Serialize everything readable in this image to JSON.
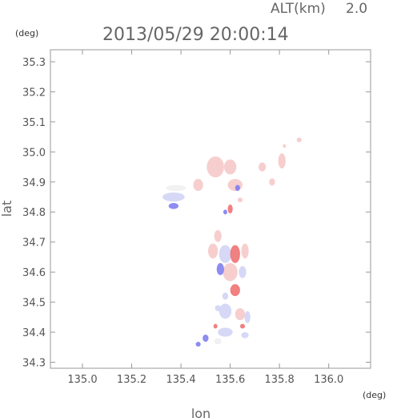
{
  "header": {
    "param_label": "ALT(km)",
    "param_value": "2.0",
    "timestamp": "2013/05/29 20:00:14"
  },
  "chart_data": {
    "type": "scatter",
    "title": "2013/05/29 20:00:14",
    "xlabel": "lon",
    "ylabel": "lat",
    "x_unit": "(deg)",
    "y_unit": "(deg)",
    "xlim": [
      134.87,
      136.17
    ],
    "ylim": [
      34.28,
      35.34
    ],
    "x_ticks": [
      135.0,
      135.2,
      135.4,
      135.6,
      135.8,
      136.0
    ],
    "x_tick_labels": [
      "135.0",
      "135.2",
      "135.4",
      "135.6",
      "135.8",
      "136.0"
    ],
    "y_ticks": [
      34.3,
      34.4,
      34.5,
      34.6,
      34.7,
      34.8,
      34.9,
      35.0,
      35.1,
      35.2,
      35.3
    ],
    "y_tick_labels": [
      "34.3",
      "34.4",
      "34.5",
      "34.6",
      "34.7",
      "34.8",
      "34.9",
      "35.0",
      "35.1",
      "35.2",
      "35.3"
    ],
    "grid": false,
    "colors": {
      "positive_light": "#f6c6c6",
      "positive_strong": "#ee6a6a",
      "negative_light": "#cfd1f4",
      "negative_strong": "#7878ee",
      "neutral": "#eeeeee",
      "axis": "#999999"
    },
    "patches": [
      {
        "lon": 135.54,
        "lat": 34.95,
        "rx": 0.035,
        "ry": 0.035,
        "polarity": "pos",
        "intensity": 0.35
      },
      {
        "lon": 135.6,
        "lat": 34.95,
        "rx": 0.025,
        "ry": 0.025,
        "polarity": "pos",
        "intensity": 0.35
      },
      {
        "lon": 135.47,
        "lat": 34.89,
        "rx": 0.02,
        "ry": 0.02,
        "polarity": "pos",
        "intensity": 0.4
      },
      {
        "lon": 135.62,
        "lat": 34.89,
        "rx": 0.03,
        "ry": 0.02,
        "polarity": "pos",
        "intensity": 0.3
      },
      {
        "lon": 135.73,
        "lat": 34.95,
        "rx": 0.015,
        "ry": 0.015,
        "polarity": "pos",
        "intensity": 0.3
      },
      {
        "lon": 135.77,
        "lat": 34.9,
        "rx": 0.012,
        "ry": 0.012,
        "polarity": "pos",
        "intensity": 0.3
      },
      {
        "lon": 135.81,
        "lat": 34.97,
        "rx": 0.015,
        "ry": 0.025,
        "polarity": "pos",
        "intensity": 0.3
      },
      {
        "lon": 135.88,
        "lat": 35.04,
        "rx": 0.01,
        "ry": 0.008,
        "polarity": "pos",
        "intensity": 0.3
      },
      {
        "lon": 135.82,
        "lat": 35.02,
        "rx": 0.006,
        "ry": 0.006,
        "polarity": "pos",
        "intensity": 0.3
      },
      {
        "lon": 135.37,
        "lat": 34.85,
        "rx": 0.045,
        "ry": 0.015,
        "polarity": "neg",
        "intensity": 0.45
      },
      {
        "lon": 135.38,
        "lat": 34.88,
        "rx": 0.04,
        "ry": 0.01,
        "polarity": "neu",
        "intensity": 0.2
      },
      {
        "lon": 135.37,
        "lat": 34.82,
        "rx": 0.02,
        "ry": 0.01,
        "polarity": "neg",
        "intensity": 0.5
      },
      {
        "lon": 135.63,
        "lat": 34.88,
        "rx": 0.01,
        "ry": 0.01,
        "polarity": "neg",
        "intensity": 0.5
      },
      {
        "lon": 135.6,
        "lat": 34.81,
        "rx": 0.01,
        "ry": 0.015,
        "polarity": "pos",
        "intensity": 0.7
      },
      {
        "lon": 135.64,
        "lat": 34.84,
        "rx": 0.01,
        "ry": 0.008,
        "polarity": "pos",
        "intensity": 0.5
      },
      {
        "lon": 135.58,
        "lat": 34.8,
        "rx": 0.008,
        "ry": 0.008,
        "polarity": "neg",
        "intensity": 0.5
      },
      {
        "lon": 135.55,
        "lat": 34.72,
        "rx": 0.015,
        "ry": 0.02,
        "polarity": "pos",
        "intensity": 0.4
      },
      {
        "lon": 135.53,
        "lat": 34.67,
        "rx": 0.02,
        "ry": 0.025,
        "polarity": "pos",
        "intensity": 0.5
      },
      {
        "lon": 135.58,
        "lat": 34.66,
        "rx": 0.025,
        "ry": 0.03,
        "polarity": "neg",
        "intensity": 0.4
      },
      {
        "lon": 135.62,
        "lat": 34.66,
        "rx": 0.02,
        "ry": 0.03,
        "polarity": "pos",
        "intensity": 0.6
      },
      {
        "lon": 135.66,
        "lat": 34.67,
        "rx": 0.015,
        "ry": 0.025,
        "polarity": "pos",
        "intensity": 0.4
      },
      {
        "lon": 135.6,
        "lat": 34.6,
        "rx": 0.03,
        "ry": 0.03,
        "polarity": "pos",
        "intensity": 0.5
      },
      {
        "lon": 135.56,
        "lat": 34.61,
        "rx": 0.015,
        "ry": 0.02,
        "polarity": "neg",
        "intensity": 0.5
      },
      {
        "lon": 135.65,
        "lat": 34.6,
        "rx": 0.015,
        "ry": 0.02,
        "polarity": "neg",
        "intensity": 0.4
      },
      {
        "lon": 135.62,
        "lat": 34.54,
        "rx": 0.02,
        "ry": 0.02,
        "polarity": "pos",
        "intensity": 0.7
      },
      {
        "lon": 135.58,
        "lat": 34.52,
        "rx": 0.012,
        "ry": 0.012,
        "polarity": "neg",
        "intensity": 0.4
      },
      {
        "lon": 135.58,
        "lat": 34.47,
        "rx": 0.025,
        "ry": 0.025,
        "polarity": "neg",
        "intensity": 0.35
      },
      {
        "lon": 135.64,
        "lat": 34.46,
        "rx": 0.02,
        "ry": 0.02,
        "polarity": "pos",
        "intensity": 0.5
      },
      {
        "lon": 135.55,
        "lat": 34.48,
        "rx": 0.012,
        "ry": 0.01,
        "polarity": "neg",
        "intensity": 0.4
      },
      {
        "lon": 135.67,
        "lat": 34.45,
        "rx": 0.012,
        "ry": 0.02,
        "polarity": "neg",
        "intensity": 0.4
      },
      {
        "lon": 135.58,
        "lat": 34.4,
        "rx": 0.03,
        "ry": 0.015,
        "polarity": "neg",
        "intensity": 0.25
      },
      {
        "lon": 135.65,
        "lat": 34.42,
        "rx": 0.01,
        "ry": 0.008,
        "polarity": "pos",
        "intensity": 0.8
      },
      {
        "lon": 135.54,
        "lat": 34.42,
        "rx": 0.008,
        "ry": 0.008,
        "polarity": "pos",
        "intensity": 0.8
      },
      {
        "lon": 135.5,
        "lat": 34.38,
        "rx": 0.012,
        "ry": 0.012,
        "polarity": "neg",
        "intensity": 0.5
      },
      {
        "lon": 135.55,
        "lat": 34.37,
        "rx": 0.015,
        "ry": 0.01,
        "polarity": "neu",
        "intensity": 0.3
      },
      {
        "lon": 135.47,
        "lat": 34.36,
        "rx": 0.01,
        "ry": 0.008,
        "polarity": "neg",
        "intensity": 0.5
      },
      {
        "lon": 135.66,
        "lat": 34.39,
        "rx": 0.015,
        "ry": 0.01,
        "polarity": "neg",
        "intensity": 0.3
      }
    ]
  }
}
